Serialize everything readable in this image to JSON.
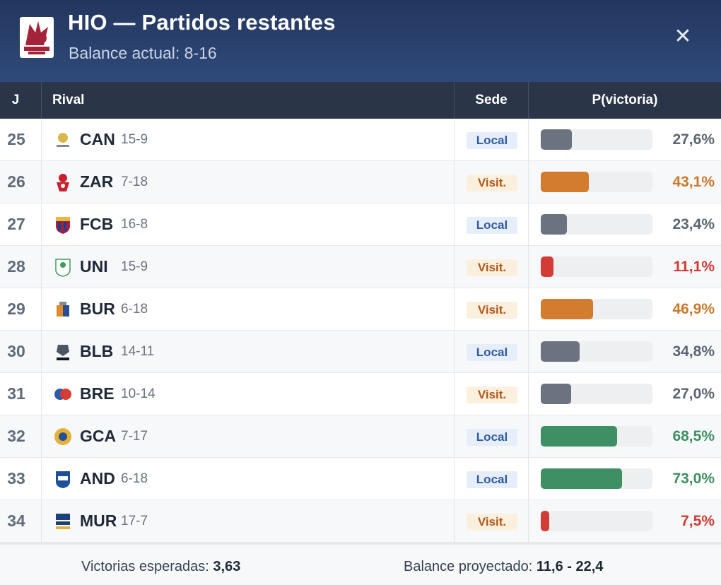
{
  "header": {
    "title": "HIO — Partidos restantes",
    "subtitle": "Balance actual: 8-16",
    "close_icon": "close-icon",
    "logo_icon": "team-crest-icon"
  },
  "table": {
    "columns": {
      "j": "J",
      "rival": "Rival",
      "sede": "Sede",
      "p": "P(victoria)"
    },
    "rows": [
      {
        "j": "25",
        "code": "CAN",
        "record": "15-9",
        "sede": "Local",
        "pct_label": "27,6%",
        "prob": 0.276,
        "level": "neutral",
        "logo": "can-crest-icon"
      },
      {
        "j": "26",
        "code": "ZAR",
        "record": "7-18",
        "sede": "Visit.",
        "pct_label": "43,1%",
        "prob": 0.431,
        "level": "medium",
        "logo": "zar-crest-icon"
      },
      {
        "j": "27",
        "code": "FCB",
        "record": "16-8",
        "sede": "Local",
        "pct_label": "23,4%",
        "prob": 0.234,
        "level": "neutral",
        "logo": "fcb-crest-icon"
      },
      {
        "j": "28",
        "code": "UNI",
        "record": "15-9",
        "sede": "Visit.",
        "pct_label": "11,1%",
        "prob": 0.111,
        "level": "low",
        "logo": "uni-crest-icon"
      },
      {
        "j": "29",
        "code": "BUR",
        "record": "6-18",
        "sede": "Visit.",
        "pct_label": "46,9%",
        "prob": 0.469,
        "level": "medium",
        "logo": "bur-crest-icon"
      },
      {
        "j": "30",
        "code": "BLB",
        "record": "14-11",
        "sede": "Local",
        "pct_label": "34,8%",
        "prob": 0.348,
        "level": "neutral",
        "logo": "blb-crest-icon"
      },
      {
        "j": "31",
        "code": "BRE",
        "record": "10-14",
        "sede": "Visit.",
        "pct_label": "27,0%",
        "prob": 0.27,
        "level": "neutral",
        "logo": "bre-crest-icon"
      },
      {
        "j": "32",
        "code": "GCA",
        "record": "7-17",
        "sede": "Local",
        "pct_label": "68,5%",
        "prob": 0.685,
        "level": "high",
        "logo": "gca-crest-icon"
      },
      {
        "j": "33",
        "code": "AND",
        "record": "6-18",
        "sede": "Local",
        "pct_label": "73,0%",
        "prob": 0.73,
        "level": "high",
        "logo": "and-crest-icon"
      },
      {
        "j": "34",
        "code": "MUR",
        "record": "17-7",
        "sede": "Visit.",
        "pct_label": "7,5%",
        "prob": 0.075,
        "level": "low",
        "logo": "mur-crest-icon"
      }
    ]
  },
  "colors": {
    "neutral": "#6b7280",
    "medium": "#d17c2e",
    "low": "#d33b35",
    "high": "#3f8f65",
    "neutral_text": "#5b6472",
    "medium_text": "#c9782c",
    "low_text": "#cf3a33",
    "high_text": "#3e8e62"
  },
  "footer": {
    "wins_label": "Victorias esperadas: ",
    "wins_value": "3,63",
    "balance_label": "Balance proyectado: ",
    "balance_value": "11,6 - 22,4"
  }
}
